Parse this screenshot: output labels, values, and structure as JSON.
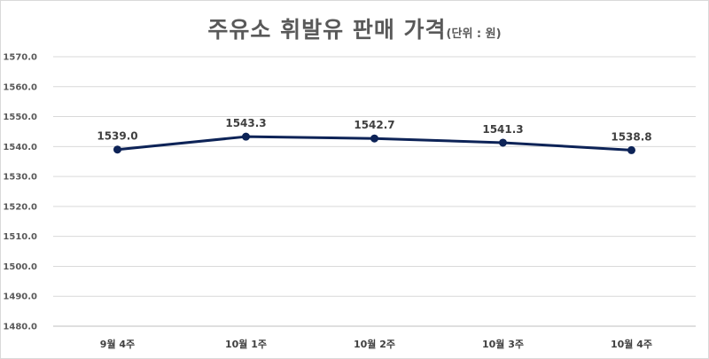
{
  "title": {
    "main": "주유소 휘발유 판매 가격",
    "unit": "(단위 : 원)"
  },
  "colors": {
    "line": "#0d2357",
    "grid": "#d9d9d9",
    "axis": "#bfbfbf"
  },
  "chart_data": {
    "type": "line",
    "title": "주유소 휘발유 판매 가격",
    "subtitle": "(단위 : 원)",
    "xlabel": "",
    "ylabel": "",
    "categories": [
      "9월 4주",
      "10월 1주",
      "10월 2주",
      "10월 3주",
      "10월 4주"
    ],
    "series": [
      {
        "values": [
          1539.0,
          1543.3,
          1542.7,
          1541.3,
          1538.8
        ],
        "labels": [
          "1539.0",
          "1543.3",
          "1542.7",
          "1541.3",
          "1538.8"
        ]
      }
    ],
    "ylim": [
      1480,
      1570
    ],
    "yticks": [
      "1480.0",
      "1490.0",
      "1500.0",
      "1510.0",
      "1520.0",
      "1530.0",
      "1540.0",
      "1550.0",
      "1560.0",
      "1570.0"
    ],
    "grid": true,
    "legend": "none"
  }
}
